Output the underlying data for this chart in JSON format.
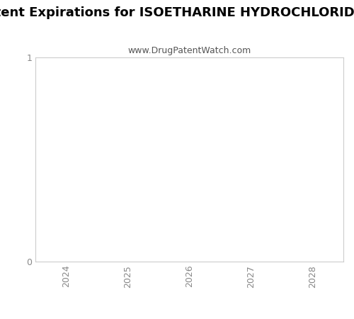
{
  "title": "Patent Expirations for ISOETHARINE HYDROCHLORIDE S",
  "subtitle": "www.DrugPatentWatch.com",
  "x_years": [
    2024,
    2025,
    2026,
    2027,
    2028
  ],
  "xlim": [
    2023.5,
    2028.5
  ],
  "ylim": [
    0,
    1
  ],
  "yticks": [
    0,
    1
  ],
  "background_color": "#ffffff",
  "plot_bg_color": "#ffffff",
  "title_fontsize": 13,
  "subtitle_fontsize": 9,
  "tick_fontsize": 9,
  "ytick_color": "#888888",
  "xtick_color": "#888888",
  "spine_color": "#cccccc",
  "title_color": "#000000",
  "subtitle_color": "#555555"
}
